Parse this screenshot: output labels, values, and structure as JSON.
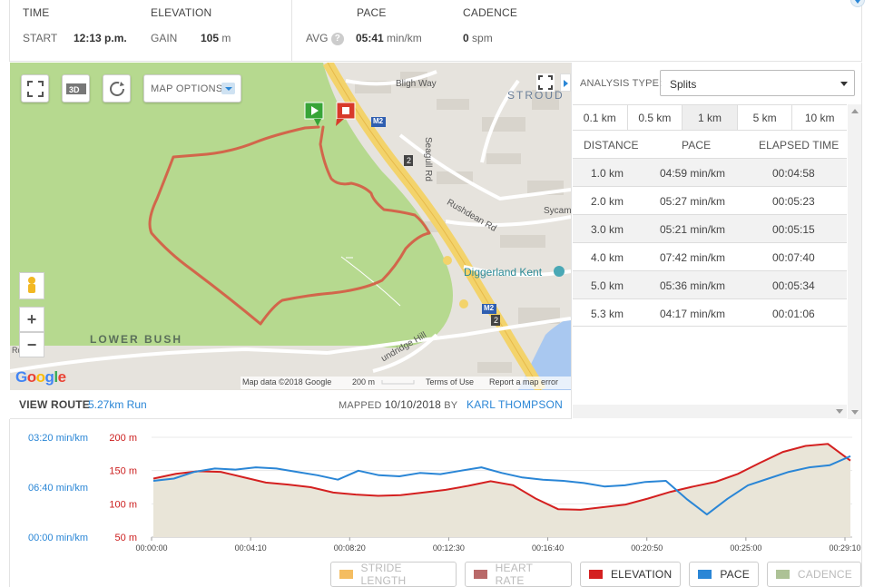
{
  "stats": {
    "time": {
      "header": "TIME",
      "label": "START",
      "value": "12:13 p.m."
    },
    "elevation": {
      "header": "ELEVATION",
      "label": "GAIN",
      "value": "105",
      "unit": "m"
    },
    "pace": {
      "header": "PACE",
      "label": "AVG",
      "help": "?",
      "value": "05:41",
      "unit": "min/km"
    },
    "cadence": {
      "header": "CADENCE",
      "value": "0",
      "unit": "spm"
    }
  },
  "map": {
    "buttons": {
      "map_options": "MAP OPTIONS",
      "three_d": "3D"
    },
    "labels": {
      "bligh_way": "Bligh Way",
      "strood": "STROUD",
      "seagull_rd": "Seagull Rd",
      "rushdean_rd": "Rushdean Rd",
      "sycam": "Sycam",
      "diggerland": "Diggerland Kent",
      "lower_bush": "LOWER BUSH",
      "m2_top": "M2",
      "m2_bottom": "M2",
      "j2_top": "2",
      "j2_bottom": "2",
      "road": "undridge Hill",
      "left_edge": "Rd"
    },
    "footer": {
      "data": "Map data ©2018 Google",
      "scale": "200 m",
      "terms": "Terms of Use",
      "report": "Report a map error"
    },
    "google": "Google"
  },
  "route": {
    "view_label": "VIEW ROUTE",
    "route_name": "5.27km Run",
    "mapped_label": "MAPPED",
    "mapped_date": "10/10/2018",
    "by_label": "BY",
    "author": "KARL THOMPSON"
  },
  "analysis": {
    "type_label": "ANALYSIS TYPE:",
    "type_value": "Splits",
    "segments": [
      "0.1 km",
      "0.5 km",
      "1 km",
      "5 km",
      "10 km"
    ],
    "active_segment": "1 km",
    "columns": [
      "DISTANCE",
      "PACE",
      "ELAPSED TIME"
    ],
    "rows": [
      [
        "1.0 km",
        "04:59 min/km",
        "00:04:58"
      ],
      [
        "2.0 km",
        "05:27 min/km",
        "00:05:23"
      ],
      [
        "3.0 km",
        "05:21 min/km",
        "00:05:15"
      ],
      [
        "4.0 km",
        "07:42 min/km",
        "00:07:40"
      ],
      [
        "5.0 km",
        "05:36 min/km",
        "00:05:34"
      ],
      [
        "5.3 km",
        "04:17 min/km",
        "00:01:06"
      ]
    ]
  },
  "chart_data": {
    "type": "line",
    "x_ticks": [
      "00:00:00",
      "00:04:10",
      "00:08:20",
      "00:12:30",
      "00:16:40",
      "00:20:50",
      "00:25:00",
      "00:29:10"
    ],
    "pace_axis": {
      "ticks": [
        "03:20 min/km",
        "06:40 min/km",
        "00:00 min/km"
      ],
      "color": "#2a86d6"
    },
    "elevation_axis": {
      "ticks": [
        "200 m",
        "150 m",
        "100 m",
        "50 m"
      ],
      "range": [
        50,
        200
      ],
      "color": "#cc1f1f"
    },
    "series": [
      {
        "name": "ELEVATION",
        "color": "#d42020",
        "x_seconds": [
          0,
          60,
          120,
          180,
          240,
          300,
          360,
          420,
          480,
          540,
          600,
          660,
          720,
          780,
          840,
          900,
          960,
          1020,
          1080,
          1140,
          1200,
          1260,
          1320,
          1380,
          1440,
          1500,
          1560,
          1620,
          1680,
          1740,
          1800,
          1760
        ],
        "values": [
          138,
          145,
          149,
          148,
          140,
          132,
          129,
          125,
          117,
          114,
          112,
          113,
          117,
          121,
          127,
          134,
          128,
          108,
          92,
          91,
          95,
          99,
          108,
          118,
          126,
          133,
          145,
          162,
          178,
          187,
          190,
          165
        ],
        "x_note": "seconds"
      },
      {
        "name": "PACE",
        "color": "#2a86d6",
        "points_min_per_km": [
          6.4,
          6.2,
          5.6,
          5.3,
          5.4,
          5.2,
          5.3,
          5.6,
          5.9,
          6.3,
          5.5,
          5.9,
          6.0,
          5.7,
          5.8,
          5.5,
          5.2,
          5.7,
          6.1,
          6.3,
          6.4,
          6.6,
          6.9,
          6.8,
          6.5,
          6.4,
          8.0,
          9.4,
          8.0,
          6.8,
          6.2,
          5.6,
          5.2,
          5.0,
          4.2
        ]
      }
    ],
    "legend": [
      {
        "name": "STRIDE LENGTH",
        "color": "#f0a11e",
        "active": false
      },
      {
        "name": "HEART RATE",
        "color": "#9b2a2a",
        "active": false
      },
      {
        "name": "ELEVATION",
        "color": "#d42020",
        "active": true
      },
      {
        "name": "PACE",
        "color": "#2a86d6",
        "active": true
      },
      {
        "name": "CADENCE",
        "color": "#8aa86a",
        "active": false
      }
    ]
  }
}
